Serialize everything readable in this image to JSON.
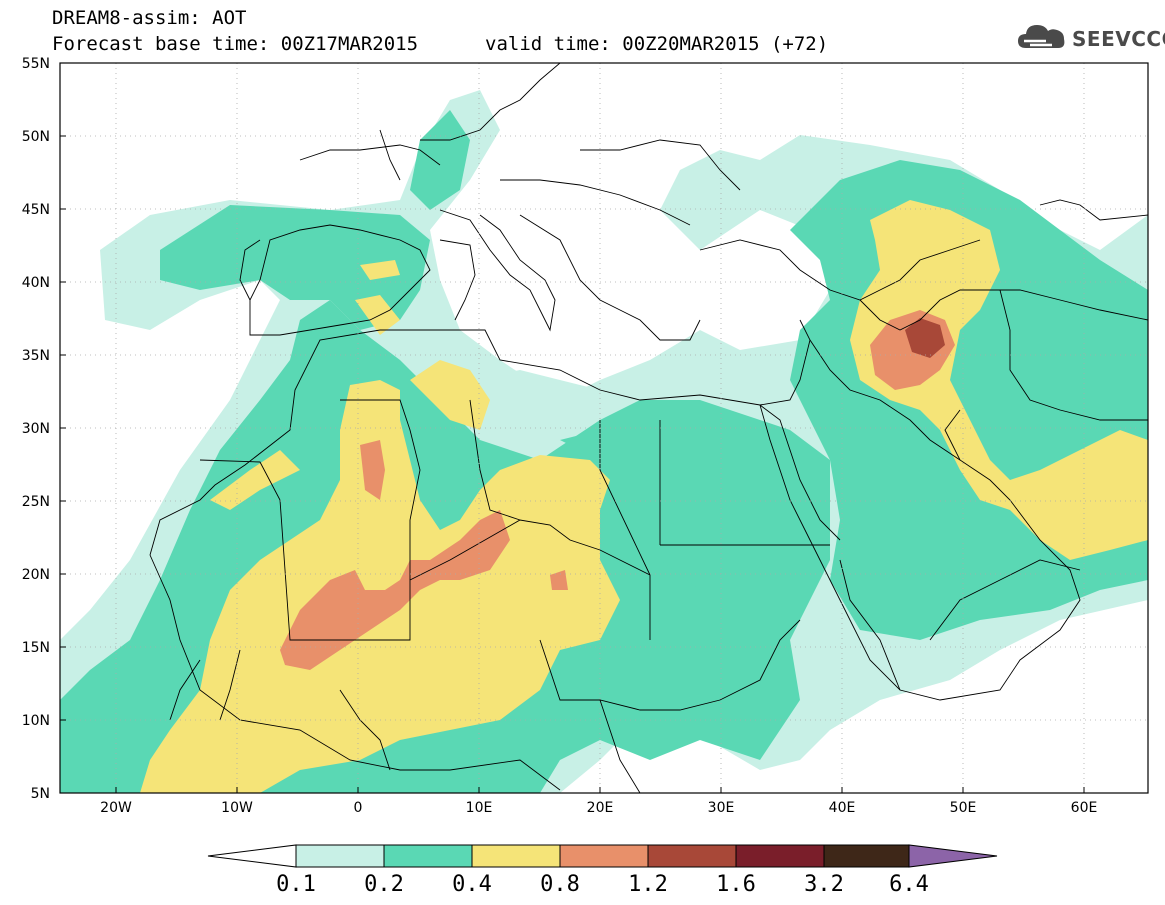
{
  "header": {
    "title": "DREAM8-assim: AOT",
    "base_time": "Forecast base time: 00Z17MAR2015",
    "valid_time": "valid time: 00Z20MAR2015 (+72)"
  },
  "logo": {
    "text": "SEEVCCC",
    "icon": "cloud-icon",
    "color": "#4a4a4a"
  },
  "axes": {
    "lat_labels": [
      "55N",
      "50N",
      "45N",
      "40N",
      "35N",
      "30N",
      "25N",
      "20N",
      "15N",
      "10N",
      "5N"
    ],
    "lon_labels": [
      "20W",
      "10W",
      "0",
      "10E",
      "20E",
      "30E",
      "40E",
      "50E",
      "60E"
    ],
    "lat_range": [
      5,
      55
    ],
    "lon_range": [
      -25,
      65
    ]
  },
  "colorbar": {
    "labels": [
      "0.1",
      "0.2",
      "0.4",
      "0.8",
      "1.2",
      "1.6",
      "3.2",
      "6.4"
    ],
    "colors": [
      "#ffffff",
      "#c8f0e6",
      "#5ad8b4",
      "#f5e478",
      "#e8906a",
      "#a84838",
      "#7a1e2a",
      "#3e2718",
      "#8c64a8"
    ]
  },
  "colors": {
    "aot_0_1": "#c8f0e6",
    "aot_0_2": "#5ad8b4",
    "aot_0_4": "#f5e478",
    "aot_0_8": "#e8906a",
    "aot_1_2": "#a84838"
  }
}
